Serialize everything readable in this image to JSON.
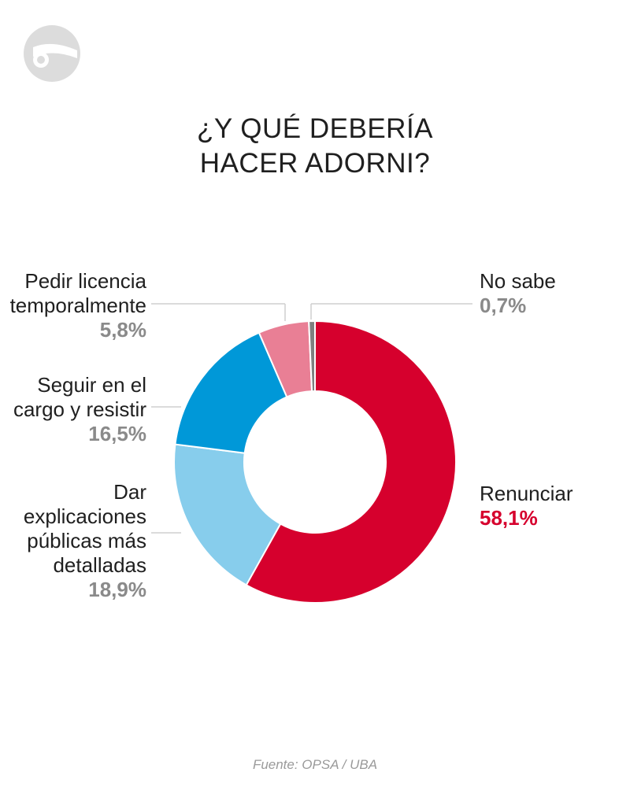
{
  "title": {
    "line1": "¿Y QUÉ DEBERÍA",
    "line2": "HACER ADORNI?"
  },
  "source": "Fuente: OPSA / UBA",
  "colors": {
    "renunciar": "#d6002d",
    "no_sabe": "#7f7f7f",
    "pedir_licencia": "#e97f95",
    "seguir": "#0098d8",
    "dar_explicaciones": "#87cdec",
    "value_gray": "#8a8a8a",
    "value_highlight": "#d6002d"
  },
  "chart_data": {
    "type": "pie",
    "donut": true,
    "slices": [
      {
        "label": "Renunciar",
        "value": 58.1,
        "display": "58,1%",
        "color": "#d6002d"
      },
      {
        "label": "Dar explicaciones públicas más detalladas",
        "value": 18.9,
        "display": "18,9%",
        "color": "#87cdec"
      },
      {
        "label": "Seguir en el cargo y resistir",
        "value": 16.5,
        "display": "16,5%",
        "color": "#0098d8"
      },
      {
        "label": "Pedir licencia temporalmente",
        "value": 5.8,
        "display": "5,8%",
        "color": "#e97f95"
      },
      {
        "label": "No sabe",
        "value": 0.7,
        "display": "0,7%",
        "color": "#7f7f7f"
      }
    ]
  },
  "labels": {
    "renunciar": {
      "lines": [
        "Renunciar"
      ],
      "value": "58,1%"
    },
    "dar": {
      "lines": [
        "Dar",
        "explicaciones",
        "públicas más",
        "detalladas"
      ],
      "value": "18,9%"
    },
    "seguir": {
      "lines": [
        "Seguir en el",
        "cargo y resistir"
      ],
      "value": "16,5%"
    },
    "pedir": {
      "lines": [
        "Pedir licencia",
        "temporalmente"
      ],
      "value": "5,8%"
    },
    "nosabe": {
      "lines": [
        "No sabe"
      ],
      "value": "0,7%"
    }
  }
}
